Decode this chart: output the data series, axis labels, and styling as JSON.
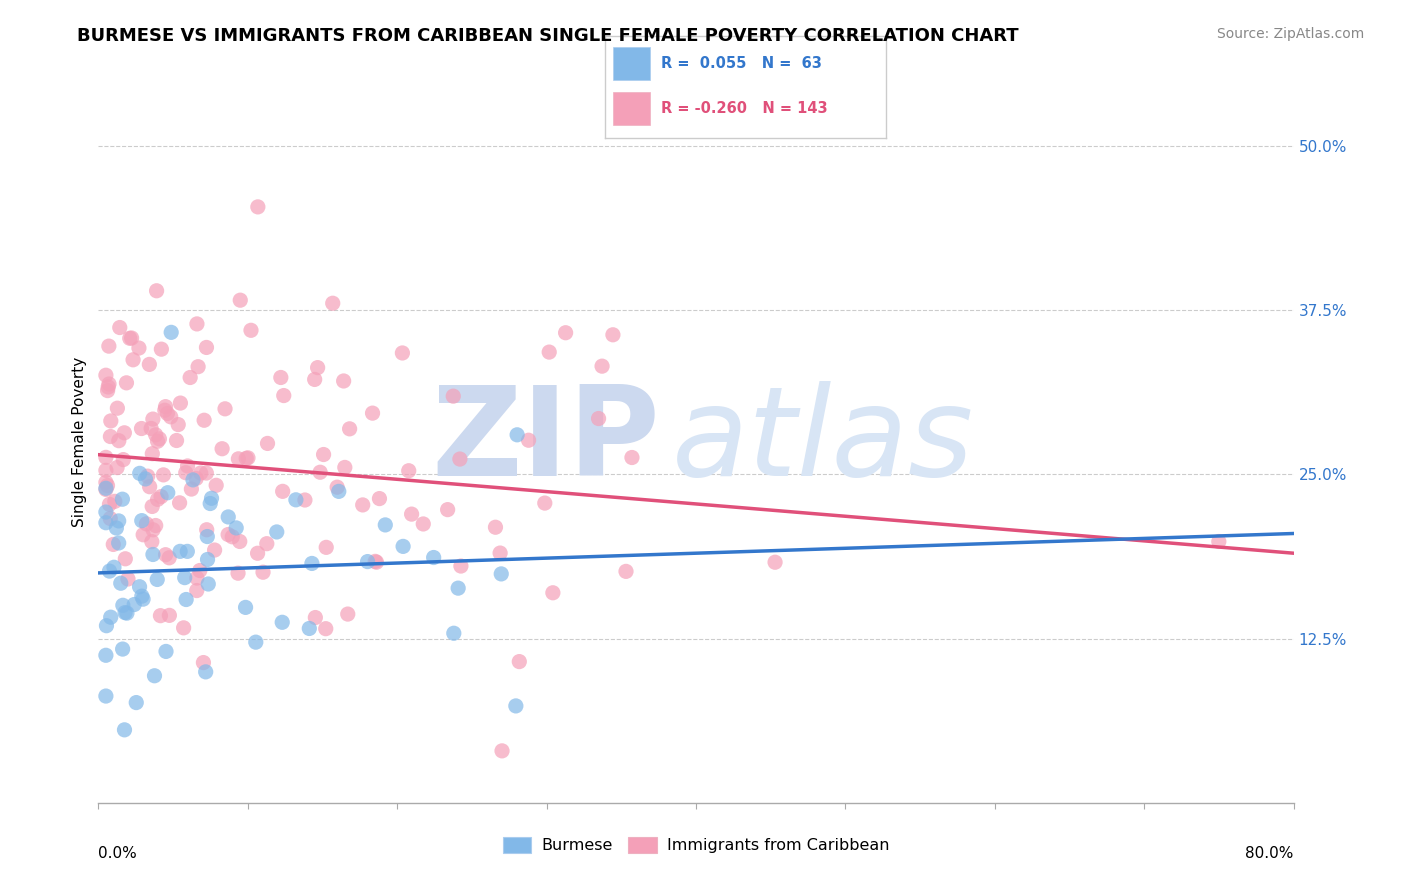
{
  "title": "BURMESE VS IMMIGRANTS FROM CARIBBEAN SINGLE FEMALE POVERTY CORRELATION CHART",
  "source": "Source: ZipAtlas.com",
  "ylabel": "Single Female Poverty",
  "right_yticks": [
    "50.0%",
    "37.5%",
    "25.0%",
    "12.5%"
  ],
  "right_ytick_vals": [
    0.5,
    0.375,
    0.25,
    0.125
  ],
  "legend_blue_R": "0.055",
  "legend_blue_N": "63",
  "legend_pink_R": "-0.260",
  "legend_pink_N": "143",
  "blue_color": "#82b8e8",
  "pink_color": "#f4a0b8",
  "blue_line_color": "#3377cc",
  "pink_line_color": "#e0507a",
  "background_color": "#ffffff",
  "grid_color": "#cccccc",
  "watermark_zip": "ZIP",
  "watermark_atlas": "atlas",
  "watermark_color": "#c8d8f0",
  "xlim": [
    0.0,
    0.8
  ],
  "ylim": [
    0.0,
    0.55
  ],
  "title_fontsize": 13,
  "source_fontsize": 10,
  "axis_label_fontsize": 11,
  "tick_fontsize": 11,
  "legend_label_blue": "Burmese",
  "legend_label_pink": "Immigrants from Caribbean"
}
